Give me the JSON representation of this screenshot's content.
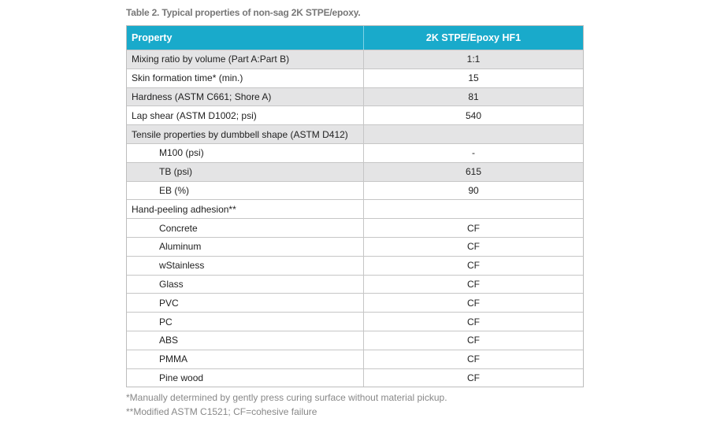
{
  "title": "Table 2. Typical properties of non-sag 2K STPE/epoxy.",
  "table": {
    "header": [
      "Property",
      "2K STPE/Epoxy HF1"
    ],
    "rows": [
      {
        "property": "Mixing ratio by volume (Part A:Part B)",
        "value": "1:1"
      },
      {
        "property": "Skin formation time* (min.)",
        "value": 15
      },
      {
        "property": "Hardness (ASTM C661; Shore A)",
        "value": 81
      },
      {
        "property": "Lap shear (ASTM D1002; psi)",
        "value": 540
      }
    ],
    "groups": [
      {
        "property": "Tensile properties by dumbbell shape (ASTM D412)",
        "items": [
          {
            "property": "M100 (psi)",
            "value": "-"
          },
          {
            "property": "TB (psi)",
            "value": 615
          },
          {
            "property": "EB (%)",
            "value": 90
          }
        ]
      },
      {
        "property": "Hand-peeling adhesion**",
        "items": [
          {
            "property": "Concrete",
            "value": "CF"
          },
          {
            "property": "Aluminum",
            "value": "CF"
          },
          {
            "property": "wStainless",
            "value": "CF"
          },
          {
            "property": "Glass",
            "value": "CF"
          },
          {
            "property": "PVC",
            "value": "CF"
          },
          {
            "property": "PC",
            "value": "CF"
          },
          {
            "property": "ABS",
            "value": "CF"
          },
          {
            "property": "PMMA",
            "value": "CF"
          },
          {
            "property": "Pine wood",
            "value": "CF"
          }
        ]
      }
    ]
  },
  "footnotes": [
    "*Manually determined by gently press curing surface without material pickup.",
    "**Modified ASTM C1521; CF=cohesive failure"
  ]
}
